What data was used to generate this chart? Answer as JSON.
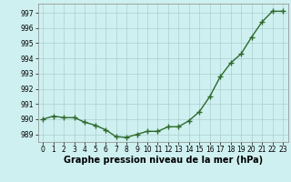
{
  "x": [
    0,
    1,
    2,
    3,
    4,
    5,
    6,
    7,
    8,
    9,
    10,
    11,
    12,
    13,
    14,
    15,
    16,
    17,
    18,
    19,
    20,
    21,
    22,
    23
  ],
  "y": [
    990.0,
    990.2,
    990.1,
    990.1,
    989.8,
    989.6,
    989.3,
    988.85,
    988.8,
    989.0,
    989.2,
    989.2,
    989.5,
    989.5,
    989.9,
    990.5,
    991.5,
    992.8,
    993.7,
    994.3,
    995.4,
    996.4,
    997.1,
    997.1
  ],
  "line_color": "#2d6a2d",
  "marker": "+",
  "marker_size": 4,
  "marker_edge_width": 1.0,
  "bg_color": "#cff0f0",
  "grid_color": "#aacece",
  "xlabel": "Graphe pression niveau de la mer (hPa)",
  "xlabel_fontsize": 7,
  "xlabel_fontweight": "bold",
  "ylim": [
    988.5,
    997.6
  ],
  "yticks": [
    989,
    990,
    991,
    992,
    993,
    994,
    995,
    996,
    997
  ],
  "xticks": [
    0,
    1,
    2,
    3,
    4,
    5,
    6,
    7,
    8,
    9,
    10,
    11,
    12,
    13,
    14,
    15,
    16,
    17,
    18,
    19,
    20,
    21,
    22,
    23
  ],
  "tick_fontsize": 5.5,
  "line_width": 1.0,
  "spine_color": "#888888"
}
